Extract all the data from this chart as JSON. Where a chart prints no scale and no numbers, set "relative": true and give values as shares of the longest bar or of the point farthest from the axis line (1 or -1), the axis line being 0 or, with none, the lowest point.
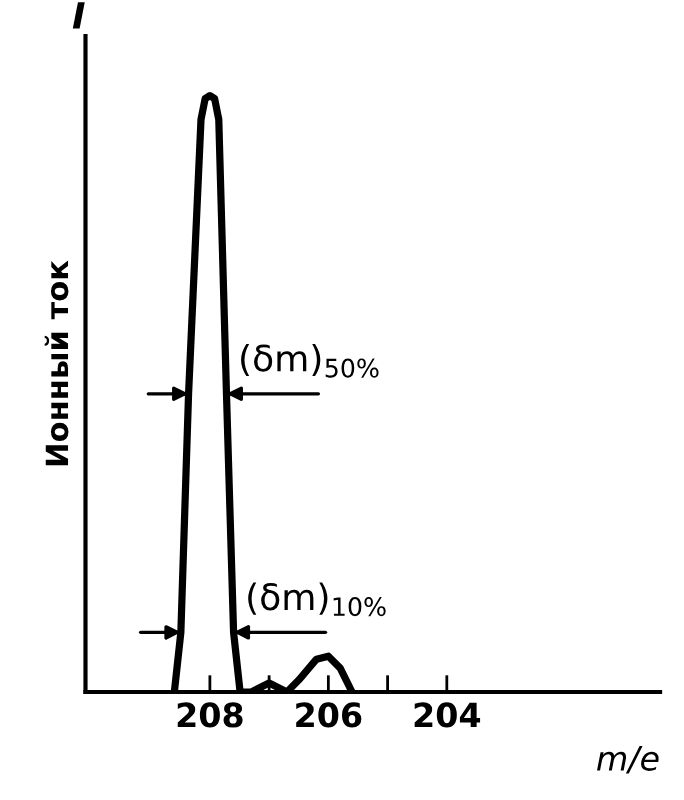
{
  "chart_data": {
    "type": "line",
    "relative": true,
    "xlabel": "m/e",
    "ylabel": "Ионный ток",
    "x": [
      208.6,
      208.49,
      208.36,
      208.15,
      208.08,
      208.0,
      207.92,
      207.85,
      207.72,
      207.6,
      207.49,
      207.3,
      207.0,
      206.7,
      206.5,
      206.2,
      206.0,
      205.8,
      205.6
    ],
    "values": [
      0,
      0.1,
      0.5,
      0.96,
      0.995,
      1.0,
      0.995,
      0.96,
      0.5,
      0.1,
      0,
      0,
      0.015,
      0,
      0.02,
      0.055,
      0.06,
      0.04,
      0
    ],
    "color": "#000000",
    "xlim": [
      210.1,
      200.4
    ],
    "xticks": [
      208,
      {
        "value": 207,
        "label": null
      },
      206,
      {
        "value": 205,
        "label": null
      },
      204
    ],
    "annotations": [
      "I",
      "(δm)$_{50%}$",
      "(δm)$_{10%}$"
    ],
    "grid": false
  }
}
